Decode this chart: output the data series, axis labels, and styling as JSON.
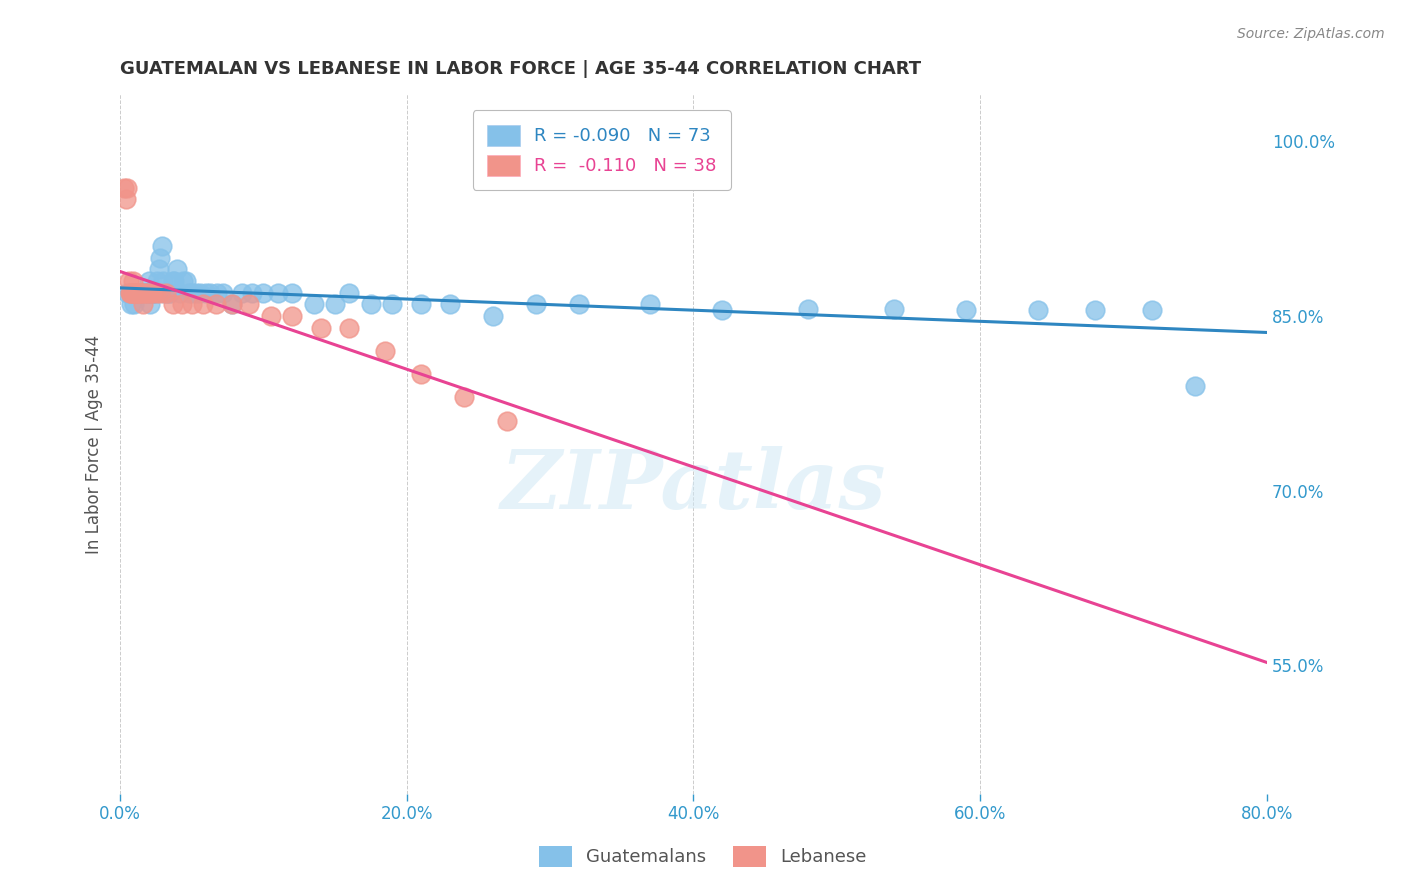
{
  "title": "GUATEMALAN VS LEBANESE IN LABOR FORCE | AGE 35-44 CORRELATION CHART",
  "source": "Source: ZipAtlas.com",
  "xlabel": "",
  "ylabel": "In Labor Force | Age 35-44",
  "x_tick_labels": [
    "0.0%",
    "20.0%",
    "40.0%",
    "60.0%",
    "80.0%"
  ],
  "x_tick_vals": [
    0.0,
    0.2,
    0.4,
    0.6,
    0.8
  ],
  "y_tick_labels": [
    "55.0%",
    "70.0%",
    "85.0%",
    "100.0%"
  ],
  "y_tick_vals": [
    0.55,
    0.7,
    0.85,
    1.0
  ],
  "xlim": [
    0.0,
    0.8
  ],
  "ylim": [
    0.44,
    1.04
  ],
  "guatemalan_R": -0.09,
  "guatemalan_N": 73,
  "lebanese_R": -0.11,
  "lebanese_N": 38,
  "guatemalan_color": "#85c1e9",
  "lebanese_color": "#f1948a",
  "guatemalan_line_color": "#2e86c1",
  "lebanese_line_color": "#e84393",
  "background_color": "#ffffff",
  "watermark": "ZIPatlas",
  "guatemalan_x": [
    0.005,
    0.007,
    0.008,
    0.01,
    0.01,
    0.012,
    0.013,
    0.014,
    0.015,
    0.015,
    0.016,
    0.016,
    0.017,
    0.018,
    0.018,
    0.019,
    0.02,
    0.02,
    0.021,
    0.021,
    0.022,
    0.022,
    0.023,
    0.024,
    0.025,
    0.026,
    0.027,
    0.028,
    0.029,
    0.03,
    0.031,
    0.032,
    0.034,
    0.035,
    0.037,
    0.038,
    0.04,
    0.042,
    0.044,
    0.046,
    0.048,
    0.05,
    0.053,
    0.056,
    0.06,
    0.063,
    0.068,
    0.072,
    0.078,
    0.085,
    0.092,
    0.1,
    0.11,
    0.12,
    0.135,
    0.15,
    0.16,
    0.175,
    0.19,
    0.21,
    0.23,
    0.26,
    0.29,
    0.32,
    0.37,
    0.42,
    0.48,
    0.54,
    0.59,
    0.64,
    0.68,
    0.72,
    0.75
  ],
  "guatemalan_y": [
    0.87,
    0.87,
    0.86,
    0.87,
    0.86,
    0.87,
    0.87,
    0.87,
    0.87,
    0.87,
    0.87,
    0.87,
    0.87,
    0.87,
    0.87,
    0.87,
    0.87,
    0.88,
    0.87,
    0.86,
    0.87,
    0.87,
    0.87,
    0.87,
    0.87,
    0.88,
    0.89,
    0.9,
    0.91,
    0.88,
    0.87,
    0.87,
    0.87,
    0.87,
    0.88,
    0.88,
    0.89,
    0.87,
    0.88,
    0.88,
    0.87,
    0.87,
    0.87,
    0.87,
    0.87,
    0.87,
    0.87,
    0.87,
    0.86,
    0.87,
    0.87,
    0.87,
    0.87,
    0.87,
    0.86,
    0.86,
    0.87,
    0.86,
    0.86,
    0.86,
    0.86,
    0.85,
    0.86,
    0.86,
    0.86,
    0.855,
    0.856,
    0.856,
    0.855,
    0.855,
    0.855,
    0.855,
    0.79
  ],
  "lebanese_x": [
    0.003,
    0.004,
    0.005,
    0.006,
    0.007,
    0.008,
    0.008,
    0.009,
    0.01,
    0.01,
    0.011,
    0.012,
    0.013,
    0.014,
    0.015,
    0.016,
    0.017,
    0.018,
    0.02,
    0.022,
    0.025,
    0.028,
    0.032,
    0.037,
    0.043,
    0.05,
    0.058,
    0.067,
    0.078,
    0.09,
    0.105,
    0.12,
    0.14,
    0.16,
    0.185,
    0.21,
    0.24,
    0.27
  ],
  "lebanese_y": [
    0.96,
    0.95,
    0.96,
    0.88,
    0.87,
    0.87,
    0.87,
    0.88,
    0.87,
    0.87,
    0.87,
    0.87,
    0.87,
    0.87,
    0.87,
    0.86,
    0.87,
    0.87,
    0.87,
    0.87,
    0.87,
    0.87,
    0.87,
    0.86,
    0.86,
    0.86,
    0.86,
    0.86,
    0.86,
    0.86,
    0.85,
    0.85,
    0.84,
    0.84,
    0.82,
    0.8,
    0.78,
    0.76
  ]
}
